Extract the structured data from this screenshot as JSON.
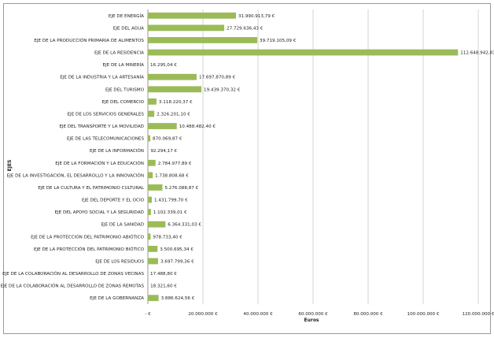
{
  "chart_data": {
    "type": "bar",
    "orientation": "horizontal",
    "title": "",
    "xlabel": "Euros",
    "ylabel": "EJES",
    "xlim": [
      0,
      120000000
    ],
    "xticks": [
      "- €",
      "20.000.000 €",
      "40.000.000 €",
      "60.000.000 €",
      "80.000.000 €",
      "100.000.000 €",
      "120.000.000 €"
    ],
    "grid": true,
    "bar_color": "#9bbb59",
    "categories": [
      "EJE DE ENERGÍA",
      "EJE DEL AGUA",
      "EJE DE LA PRODUCCIÓN PRIMARIA DE ALIMENTOS",
      "EJE DE LA RESIDENCIA",
      "EJE DE LA MINERÍA",
      "EJE DE LA INDUSTRIA Y LA ARTESANÍA",
      "EJE DEL TURISMO",
      "EJE DEL COMERCIO",
      "EJE DE LOS SERVICIOS GENERALES",
      "EJE DEL TRANSPORTE Y LA MOVILIDAD",
      "EJE DE LAS TELECOMUNICACIONES",
      "EJE DE LA INFORMACIÓN",
      "EJE DE LA FORMACIÓN Y LA EDUCACIÓN",
      "EJE DE LA INVESTIGACIÓN, EL DESARROLLO Y LA INNOVACIÓN",
      "EJE DE LA CULTURA Y EL PATRIMONIO CULTURAL",
      "EJE DEL DEPORTE Y EL OCIO",
      "EJE DEL APOYO SOCIAL Y LA SEGURIDAD",
      "EJE DE LA SANIDAD",
      "EJE DE LA PROTECCIÓN DEL PATRIMONIO ABIÓTICO",
      "EJE DE LA PROTECCIÓN DEL PATRIMONIO BIÓTICO",
      "EJE DE LOS RESIDUOS",
      "EJE DE LA COLABORACIÓN AL DESARROLLO DE ZONAS VECINAS",
      "EJE DE LA COLABORACIÓN AL DESARROLLO DE ZONAS REMOTAS",
      "EJE DE LA GOBERNANZA"
    ],
    "values": [
      31990913.79,
      27729636.43,
      39719105.09,
      112648942.81,
      16295.04,
      17697870.89,
      19439370.32,
      3118220.37,
      2326201.1,
      10488482.4,
      870069.87,
      92294.17,
      2784977.89,
      1738808.68,
      5276088.87,
      1431799.7,
      1102339.01,
      6364331.03,
      978733.4,
      3500695.34,
      3697799.36,
      17488.8,
      18321.6,
      3886624.56
    ],
    "data_labels": [
      "31.990.913,79 €",
      "27.729.636,43 €",
      "39.719.105,09 €",
      "112.648.942,81 €",
      "16.295,04 €",
      "17.697.870,89 €",
      "19.439.370,32 €",
      "3.118.220,37 €",
      "2.326.201,10 €",
      "10.488.482,40 €",
      "870.069,87 €",
      "92.294,17 €",
      "2.784.977,89 €",
      "1.738.808,68 €",
      "5.276.088,87 €",
      "1.431.799,70 €",
      "1.102.339,01 €",
      "6.364.331,03 €",
      "978.733,40 €",
      "3.500.695,34 €",
      "3.697.799,36 €",
      "17.488,80 €",
      "18.321,60 €",
      "3.886.624,56 €"
    ]
  }
}
